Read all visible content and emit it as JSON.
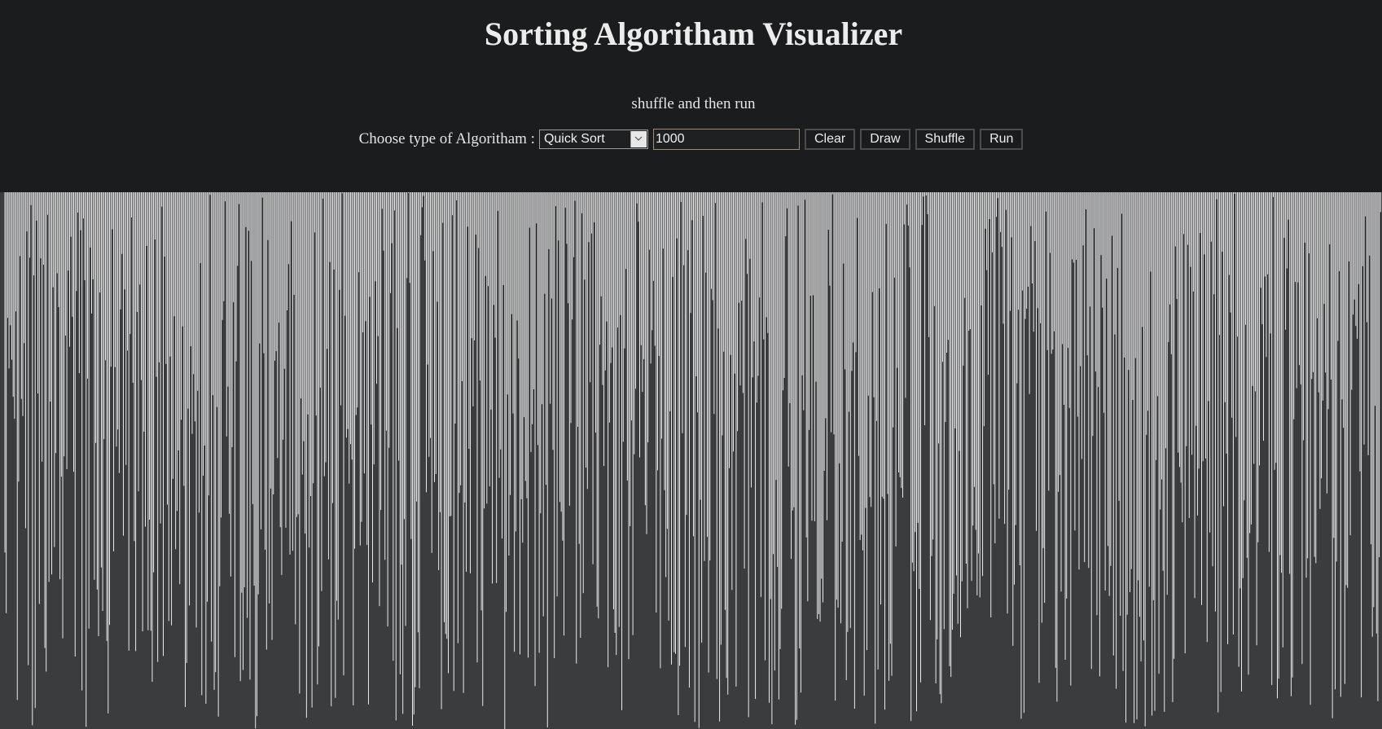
{
  "page": {
    "title": "Sorting Algoritham Visualizer",
    "subtitle": "shuffle and then run"
  },
  "controls": {
    "label": "Choose type of Algoritham :",
    "algorithm_select": {
      "selected": "Quick Sort"
    },
    "count_input": {
      "value": "1000"
    },
    "buttons": {
      "clear": "Clear",
      "draw": "Draw",
      "shuffle": "Shuffle",
      "run": "Run"
    }
  },
  "visualization": {
    "bar_count": 1000,
    "bar_color": "#ffffff",
    "background_color": "#3b3c3e",
    "state": "shuffled"
  },
  "colors": {
    "page_background": "#1b1c1e",
    "text": "#e9e9e9"
  }
}
